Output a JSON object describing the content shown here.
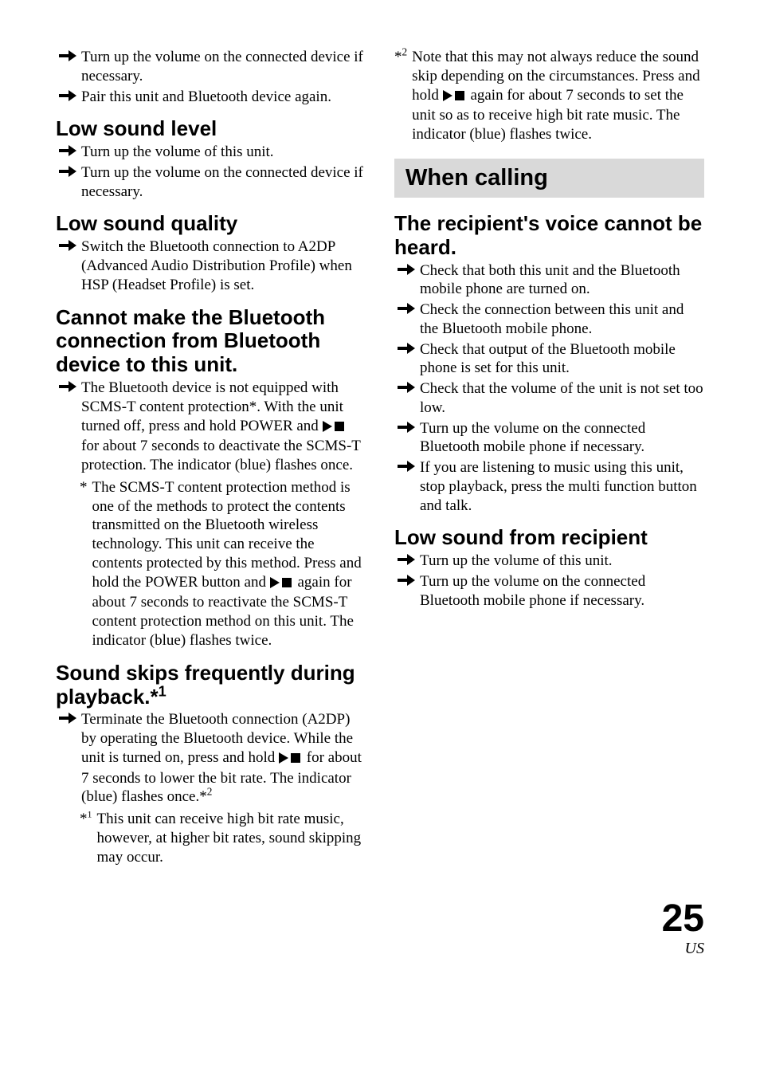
{
  "arrow_svg_width": 22,
  "arrow_svg_height": 14,
  "playstop_svg_width": 30,
  "playstop_svg_height": 14,
  "colors": {
    "text": "#000000",
    "banner_bg": "#d9d9d9"
  },
  "left": {
    "intro_items": [
      "Turn up the volume on the connected device if necessary.",
      "Pair this unit and Bluetooth device again."
    ],
    "sec1": {
      "title": "Low sound level",
      "items": [
        "Turn up the volume of this unit.",
        "Turn up the volume on the connected device if necessary."
      ]
    },
    "sec2": {
      "title": "Low sound quality",
      "items": [
        "Switch the Bluetooth connection to A2DP (Advanced Audio Distribution Profile) when HSP (Headset Profile) is set."
      ]
    },
    "sec3": {
      "title": "Cannot make the Bluetooth connection from Bluetooth device to this unit.",
      "item_pre": "The Bluetooth device is not equipped with SCMS-T content protection*. With the unit turned off, press and hold POWER and ",
      "item_post": " for about 7 seconds to deactivate the SCMS-T protection. The indicator (blue) flashes once.",
      "sub_star": "*",
      "sub_pre": "The SCMS-T content protection method is one of the methods to protect the contents transmitted on the Bluetooth wireless technology. This unit can receive the contents protected by this method. Press and hold the POWER button and ",
      "sub_post": " again for about 7 seconds to reactivate the SCMS-T content protection method on this unit. The indicator (blue) flashes twice."
    },
    "sec4": {
      "title_pre": "Sound skips frequently during playback.*",
      "title_sup": "1",
      "item_pre": "Terminate the Bluetooth connection (A2DP) by operating the Bluetooth device. While the unit is turned on, press and hold ",
      "item_post_a": " for about 7 seconds to lower the bit rate. The indicator (blue) flashes once.*",
      "item_post_sup": "2",
      "fn1_star_pre": "*",
      "fn1_star_sup": "1",
      "fn1_text": "This unit can receive high bit rate music, however, at higher bit rates, sound skipping may occur."
    }
  },
  "right": {
    "fn2_star_pre": "*",
    "fn2_star_sup": "2",
    "fn2_pre": "Note that this may not always reduce the sound skip depending on the circumstances. Press and hold ",
    "fn2_post": " again for about 7 seconds to set the unit so as to receive high bit rate music. The indicator (blue) flashes twice.",
    "banner": "When calling",
    "sec1": {
      "title": "The recipient's voice cannot be heard.",
      "items": [
        "Check that both this unit and the Bluetooth mobile phone are turned on.",
        "Check the connection between this unit and the Bluetooth mobile phone.",
        "Check that output of the Bluetooth mobile phone is set for this unit.",
        "Check that the volume of the unit is not set too low.",
        "Turn up the volume on the connected Bluetooth mobile phone if necessary.",
        "If you are listening to music using this unit, stop playback, press the multi function button and talk."
      ]
    },
    "sec2": {
      "title": "Low sound from recipient",
      "items": [
        "Turn up the volume of this unit.",
        "Turn up the volume on the connected Bluetooth mobile phone if necessary."
      ]
    }
  },
  "page_number": "25",
  "region": "US"
}
